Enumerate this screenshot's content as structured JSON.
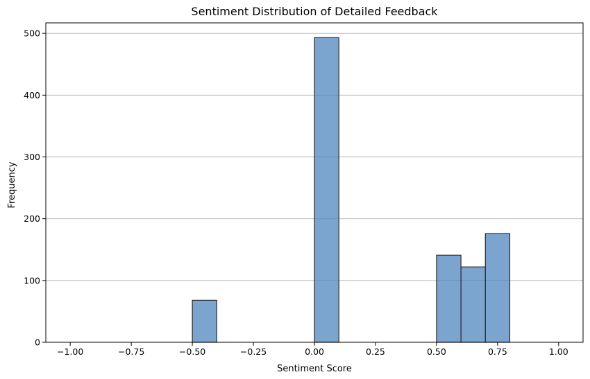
{
  "chart_data": {
    "type": "bar",
    "title": "Sentiment Distribution of Detailed Feedback",
    "xlabel": "Sentiment Score",
    "ylabel": "Frequency",
    "xlim": [
      -1.1,
      1.1
    ],
    "ylim": [
      0,
      517
    ],
    "bin_edges": [
      -1.0,
      -0.9,
      -0.8,
      -0.7,
      -0.6,
      -0.5,
      -0.4,
      -0.3,
      -0.2,
      -0.1,
      0.0,
      0.1,
      0.2,
      0.3,
      0.4,
      0.5,
      0.6,
      0.7,
      0.8,
      0.9,
      1.0
    ],
    "values": [
      0,
      0,
      0,
      0,
      0,
      68,
      0,
      0,
      0,
      0,
      493,
      0,
      0,
      0,
      0,
      141,
      122,
      176,
      0,
      0
    ],
    "xticks": [
      -1.0,
      -0.75,
      -0.5,
      -0.25,
      0.0,
      0.25,
      0.5,
      0.75,
      1.0
    ],
    "xtick_labels": [
      "−1.00",
      "−0.75",
      "−0.50",
      "−0.25",
      "0.00",
      "0.25",
      "0.50",
      "0.75",
      "1.00"
    ],
    "yticks": [
      0,
      100,
      200,
      300,
      400,
      500
    ],
    "ytick_labels": [
      "0",
      "100",
      "200",
      "300",
      "400",
      "500"
    ],
    "grid": "y",
    "color": "#4f87bd",
    "edge_color": "#2b2b2b"
  }
}
